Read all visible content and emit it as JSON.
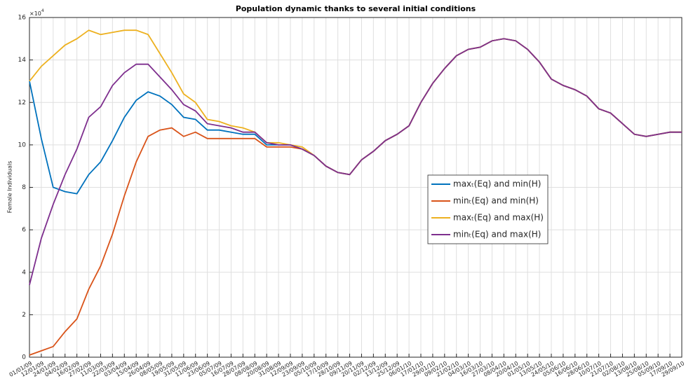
{
  "chart_data": {
    "type": "line",
    "title": "Population dynamic thanks to several initial conditions",
    "y_label": "Female Individuals",
    "y_multiplier": {
      "base": "×10",
      "exponent": "4"
    },
    "x": [
      "01/01/09",
      "12/01/09",
      "24/01/09",
      "04/02/09",
      "16/02/09",
      "27/02/09",
      "11/03/09",
      "22/03/09",
      "03/04/09",
      "15/04/09",
      "26/04/09",
      "08/05/09",
      "19/05/09",
      "31/05/09",
      "11/06/09",
      "23/06/09",
      "05/07/09",
      "16/07/09",
      "28/07/09",
      "08/08/09",
      "20/08/09",
      "31/08/09",
      "12/09/09",
      "23/09/09",
      "05/10/09",
      "17/10/09",
      "28/10/09",
      "09/11/09",
      "20/11/09",
      "02/12/09",
      "13/12/09",
      "25/12/09",
      "06/01/10",
      "17/01/10",
      "29/01/10",
      "09/02/10",
      "21/02/10",
      "04/03/10",
      "16/03/10",
      "27/03/10",
      "08/04/10",
      "20/04/10",
      "01/05/10",
      "13/05/10",
      "24/05/10",
      "05/06/10",
      "16/06/10",
      "28/06/10",
      "10/07/10",
      "21/07/10",
      "02/08/10",
      "13/08/10",
      "25/08/10",
      "05/09/10",
      "17/09/10",
      "29/09/10"
    ],
    "ylim": [
      0,
      16
    ],
    "yticks": [
      0,
      2,
      4,
      6,
      8,
      10,
      12,
      14,
      16
    ],
    "grid": true,
    "series": [
      {
        "name": "maxₜ(Eq) and min(H)",
        "color": "#0072BD",
        "values": [
          13,
          10.3,
          8.0,
          7.8,
          7.7,
          8.6,
          9.2,
          10.2,
          11.3,
          12.1,
          12.5,
          12.3,
          11.9,
          11.3,
          11.2,
          10.7,
          10.7,
          10.6,
          10.5,
          10.5,
          10.0,
          10.0,
          10.0,
          9.8,
          9.5,
          9.0,
          8.7,
          8.6,
          9.3,
          9.7,
          10.2,
          10.5,
          10.9,
          12.0,
          12.9,
          13.6,
          14.2,
          14.5,
          14.6,
          14.9,
          15.0,
          14.9,
          14.5,
          13.9,
          13.1,
          12.8,
          12.6,
          12.3,
          11.7,
          11.5,
          11.0,
          10.5,
          10.4,
          10.5,
          10.6,
          10.6
        ]
      },
      {
        "name": "minₜ(Eq) and min(H)",
        "color": "#D95319",
        "values": [
          0.1,
          0.3,
          0.5,
          1.2,
          1.8,
          3.2,
          4.3,
          5.8,
          7.6,
          9.2,
          10.4,
          10.7,
          10.8,
          10.4,
          10.6,
          10.3,
          10.3,
          10.3,
          10.3,
          10.3,
          9.9,
          9.9,
          9.9,
          9.8,
          9.5,
          9.0,
          8.7,
          8.6,
          9.3,
          9.7,
          10.2,
          10.5,
          10.9,
          12.0,
          12.9,
          13.6,
          14.2,
          14.5,
          14.6,
          14.9,
          15.0,
          14.9,
          14.5,
          13.9,
          13.1,
          12.8,
          12.6,
          12.3,
          11.7,
          11.5,
          11.0,
          10.5,
          10.4,
          10.5,
          10.6,
          10.6
        ]
      },
      {
        "name": "maxₜ(Eq) and max(H)",
        "color": "#EDB120",
        "values": [
          13.0,
          13.7,
          14.2,
          14.7,
          15.0,
          15.4,
          15.2,
          15.3,
          15.4,
          15.4,
          15.2,
          14.3,
          13.4,
          12.4,
          12.0,
          11.2,
          11.1,
          10.9,
          10.8,
          10.6,
          10.1,
          10.1,
          10.0,
          9.9,
          9.5,
          9.0,
          8.7,
          8.6,
          9.3,
          9.7,
          10.2,
          10.5,
          10.9,
          12.0,
          12.9,
          13.6,
          14.2,
          14.5,
          14.6,
          14.9,
          15.0,
          14.9,
          14.5,
          13.9,
          13.1,
          12.8,
          12.6,
          12.3,
          11.7,
          11.5,
          11.0,
          10.5,
          10.4,
          10.5,
          10.6,
          10.6
        ]
      },
      {
        "name": "minₜ(Eq) and max(H)",
        "color": "#7E2F8E",
        "values": [
          3.4,
          5.6,
          7.2,
          8.6,
          9.8,
          11.3,
          11.8,
          12.8,
          13.4,
          13.8,
          13.8,
          13.2,
          12.6,
          11.9,
          11.6,
          11.0,
          10.9,
          10.8,
          10.6,
          10.6,
          10.1,
          10.0,
          10.0,
          9.8,
          9.5,
          9.0,
          8.7,
          8.6,
          9.3,
          9.7,
          10.2,
          10.5,
          10.9,
          12.0,
          12.9,
          13.6,
          14.2,
          14.5,
          14.6,
          14.9,
          15.0,
          14.9,
          14.5,
          13.9,
          13.1,
          12.8,
          12.6,
          12.3,
          11.7,
          11.5,
          11.0,
          10.5,
          10.4,
          10.5,
          10.6,
          10.6
        ]
      }
    ]
  }
}
